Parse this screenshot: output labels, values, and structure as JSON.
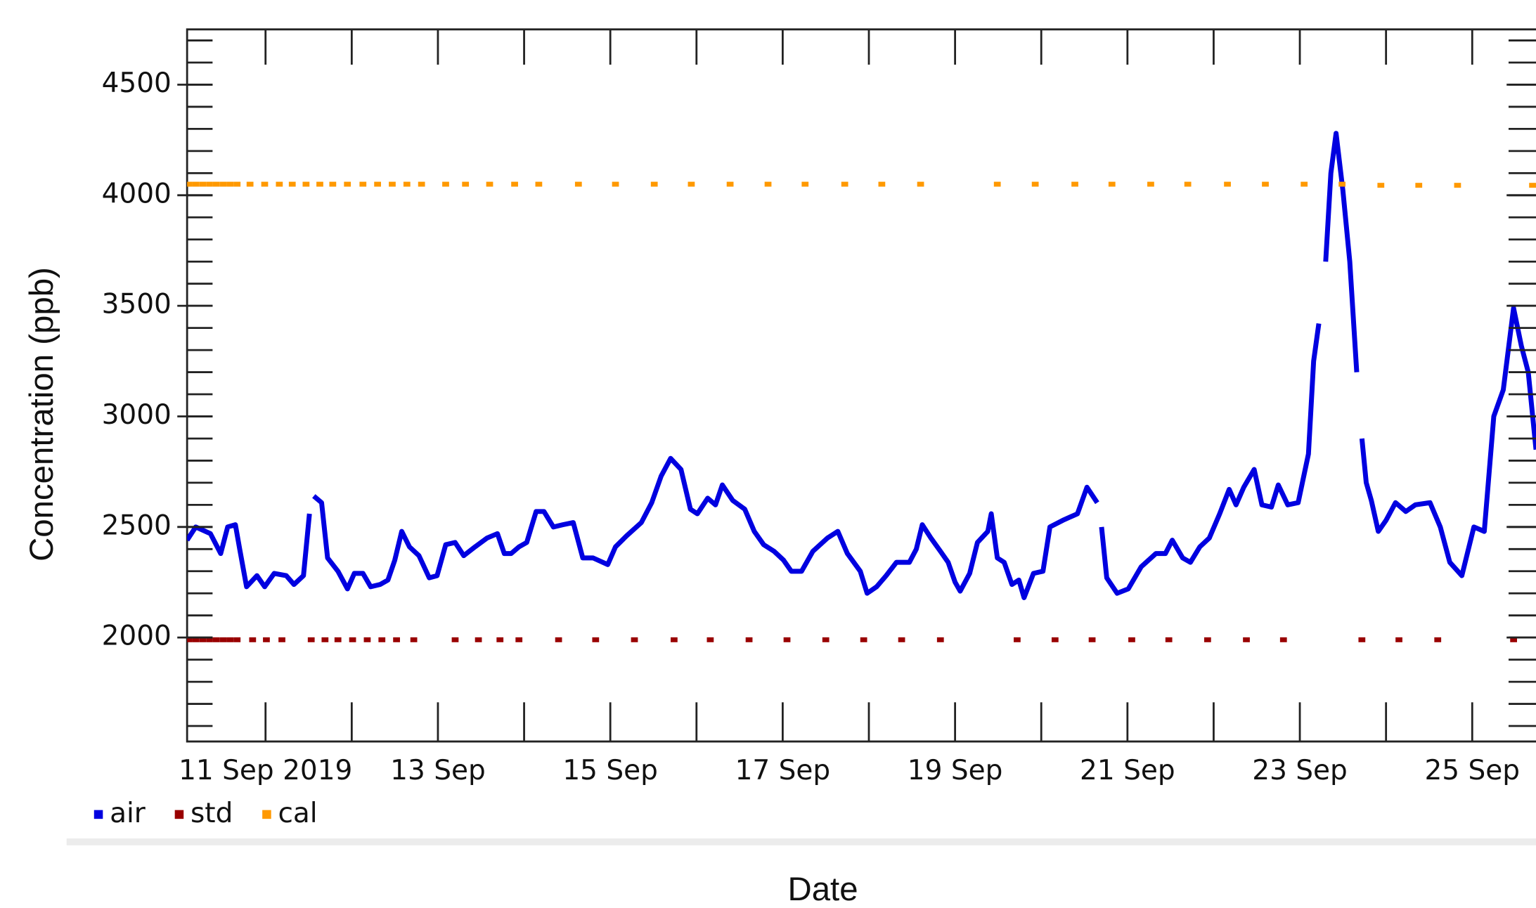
{
  "chart_data": {
    "type": "line",
    "x_label": "Date",
    "y_label": "Concentration (ppb)",
    "xlim": [
      10.09,
      25.74
    ],
    "xticks": [
      {
        "value": 11,
        "label": "11 Sep 2019"
      },
      {
        "value": 13,
        "label": "13 Sep"
      },
      {
        "value": 15,
        "label": "15 Sep"
      },
      {
        "value": 17,
        "label": "17 Sep"
      },
      {
        "value": 19,
        "label": "19 Sep"
      },
      {
        "value": 21,
        "label": "21 Sep"
      },
      {
        "value": 23,
        "label": "23 Sep"
      },
      {
        "value": 25,
        "label": "25 Sep"
      }
    ],
    "x_minor_ticks": [
      12,
      14,
      16,
      18,
      20,
      22,
      24
    ],
    "ylim": [
      1530,
      4750
    ],
    "yticks": [
      2000,
      2500,
      3000,
      3500,
      4000,
      4500
    ],
    "y_minor_ticks": [
      1600,
      1700,
      1800,
      1900,
      2000,
      2100,
      2200,
      2300,
      2400,
      2500,
      2600,
      2700,
      2800,
      2900,
      3000,
      3100,
      3200,
      3300,
      3400,
      3500,
      3600,
      3700,
      3800,
      3900,
      4000,
      4100,
      4200,
      4300,
      4400,
      4500,
      4600,
      4700
    ],
    "legend": "bottom-left",
    "series": [
      {
        "name": "air",
        "color": "#0000e0",
        "mode": "line",
        "x": [
          10.09,
          10.19,
          10.36,
          10.48,
          10.56,
          10.65,
          10.7,
          10.78,
          10.9,
          10.99,
          11.1,
          11.24,
          11.33,
          11.44,
          11.51,
          11.53,
          11.56,
          11.65,
          11.72,
          11.84,
          11.95,
          12.03,
          12.13,
          12.22,
          12.33,
          12.42,
          12.5,
          12.58,
          12.67,
          12.78,
          12.9,
          12.99,
          13.09,
          13.2,
          13.3,
          13.43,
          13.57,
          13.69,
          13.77,
          13.85,
          13.94,
          14.03,
          14.14,
          14.23,
          14.34,
          14.45,
          14.57,
          14.68,
          14.8,
          14.97,
          15.06,
          15.19,
          15.36,
          15.48,
          15.59,
          15.7,
          15.82,
          15.93,
          16.01,
          16.13,
          16.22,
          16.3,
          16.42,
          16.56,
          16.67,
          16.78,
          16.9,
          17.01,
          17.1,
          17.22,
          17.35,
          17.52,
          17.64,
          17.75,
          17.9,
          17.98,
          18.09,
          18.2,
          18.32,
          18.47,
          18.55,
          18.62,
          18.72,
          18.83,
          18.92,
          19.0,
          19.06,
          19.17,
          19.26,
          19.38,
          19.42,
          19.49,
          19.57,
          19.66,
          19.74,
          19.8,
          19.91,
          20.02,
          20.1,
          20.25,
          20.42,
          20.53,
          20.65,
          20.67,
          20.7,
          20.76,
          20.88,
          21.01,
          21.16,
          21.33,
          21.44,
          21.52,
          21.64,
          21.73,
          21.84,
          21.95,
          22.07,
          22.18,
          22.26,
          22.35,
          22.47,
          22.56,
          22.67,
          22.75,
          22.86,
          22.98,
          23.1,
          23.16,
          23.22,
          23.26,
          23.3,
          23.36,
          23.42,
          23.5,
          23.58,
          23.66,
          23.69,
          23.72,
          23.77,
          23.83,
          23.91,
          24.0,
          24.11,
          24.23,
          24.34,
          24.51,
          24.63,
          24.74,
          24.88,
          25.02,
          25.14,
          25.25,
          25.36,
          25.48,
          25.57,
          25.65,
          25.74
        ],
        "values": [
          2440,
          2500,
          2470,
          2380,
          2500,
          2510,
          2400,
          2230,
          2280,
          2230,
          2290,
          2280,
          2240,
          2280,
          2560,
          null,
          2640,
          2610,
          2360,
          2300,
          2220,
          2290,
          2290,
          2230,
          2240,
          2260,
          2350,
          2480,
          2410,
          2370,
          2270,
          2280,
          2420,
          2430,
          2370,
          2410,
          2450,
          2470,
          2380,
          2380,
          2410,
          2430,
          2570,
          2570,
          2500,
          2510,
          2520,
          2360,
          2360,
          2330,
          2410,
          2460,
          2520,
          2610,
          2730,
          2810,
          2760,
          2580,
          2560,
          2630,
          2600,
          2690,
          2620,
          2580,
          2480,
          2420,
          2390,
          2350,
          2300,
          2300,
          2390,
          2450,
          2480,
          2380,
          2300,
          2200,
          2230,
          2280,
          2340,
          2340,
          2400,
          2510,
          2450,
          2390,
          2340,
          2250,
          2210,
          2290,
          2430,
          2480,
          2560,
          2360,
          2340,
          2240,
          2260,
          2180,
          2290,
          2300,
          2500,
          2530,
          2560,
          2680,
          2610,
          null,
          2500,
          2270,
          2200,
          2220,
          2320,
          2380,
          2380,
          2440,
          2360,
          2340,
          2410,
          2450,
          2560,
          2670,
          2600,
          2680,
          2760,
          2600,
          2590,
          2690,
          2600,
          2610,
          2830,
          3250,
          3420,
          null,
          3700,
          4100,
          4280,
          4020,
          3700,
          3200,
          null,
          2900,
          2700,
          2620,
          2480,
          2530,
          2610,
          2570,
          2600,
          2610,
          2500,
          2340,
          2280,
          2500,
          2480,
          3000,
          3120,
          3490,
          3320,
          3200,
          2850
        ]
      },
      {
        "name": "std",
        "color": "#990000",
        "mode": "markers",
        "x": [
          10.11,
          10.19,
          10.27,
          10.35,
          10.43,
          10.51,
          10.59,
          10.67,
          10.85,
          11.01,
          11.19,
          11.53,
          11.69,
          11.84,
          12.01,
          12.18,
          12.35,
          12.52,
          12.72,
          13.2,
          13.47,
          13.72,
          13.94,
          14.4,
          14.83,
          15.28,
          15.74,
          16.16,
          16.61,
          17.05,
          17.5,
          17.94,
          18.38,
          18.83,
          19.72,
          20.16,
          20.59,
          21.05,
          21.48,
          21.93,
          22.38,
          22.81,
          23.72,
          24.15,
          24.6,
          25.48
        ],
        "values": [
          1990,
          1990,
          1990,
          1990,
          1990,
          1990,
          1990,
          1990,
          1990,
          1990,
          1990,
          1990,
          1990,
          1990,
          1990,
          1990,
          1990,
          1990,
          1990,
          1990,
          1990,
          1990,
          1990,
          1990,
          1990,
          1990,
          1990,
          1990,
          1990,
          1990,
          1990,
          1990,
          1990,
          1990,
          1990,
          1990,
          1990,
          1990,
          1990,
          1990,
          1990,
          1990,
          1990,
          1990,
          1990,
          1990
        ]
      },
      {
        "name": "cal",
        "color": "#ff9900",
        "mode": "markers",
        "x": [
          10.11,
          10.19,
          10.27,
          10.35,
          10.43,
          10.51,
          10.59,
          10.67,
          10.82,
          10.99,
          11.16,
          11.31,
          11.47,
          11.63,
          11.78,
          11.95,
          12.13,
          12.3,
          12.47,
          12.64,
          12.81,
          13.09,
          13.32,
          13.6,
          13.89,
          14.17,
          14.63,
          15.06,
          15.51,
          15.94,
          16.39,
          16.83,
          17.26,
          17.72,
          18.15,
          18.6,
          19.49,
          19.93,
          20.39,
          20.82,
          21.27,
          21.7,
          22.16,
          22.6,
          23.05,
          23.49,
          23.94,
          24.38,
          24.83,
          25.7
        ],
        "values": [
          4050,
          4050,
          4050,
          4050,
          4050,
          4050,
          4050,
          4050,
          4050,
          4050,
          4050,
          4050,
          4050,
          4050,
          4050,
          4050,
          4050,
          4050,
          4050,
          4050,
          4050,
          4050,
          4050,
          4050,
          4050,
          4050,
          4050,
          4050,
          4050,
          4050,
          4050,
          4050,
          4050,
          4050,
          4050,
          4050,
          4050,
          4050,
          4050,
          4050,
          4050,
          4050,
          4050,
          4050,
          4050,
          4050,
          4045,
          4045,
          4045,
          4045
        ]
      }
    ]
  }
}
